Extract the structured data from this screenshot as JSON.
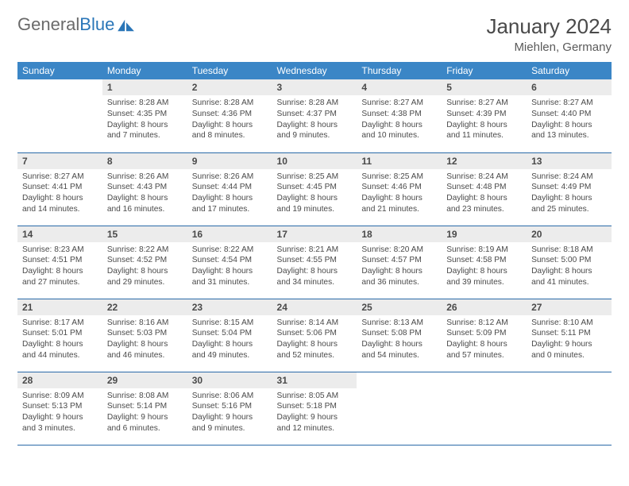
{
  "brand": {
    "name_gray": "General",
    "name_blue": "Blue"
  },
  "title": "January 2024",
  "location": "Miehlen, Germany",
  "colors": {
    "header_bg": "#3b86c6",
    "header_text": "#ffffff",
    "daynum_bg": "#ececec",
    "row_divider": "#2a6aa8",
    "text": "#4a4a4a",
    "brand_gray": "#6a6a6a",
    "brand_blue": "#2a76b8"
  },
  "day_headers": [
    "Sunday",
    "Monday",
    "Tuesday",
    "Wednesday",
    "Thursday",
    "Friday",
    "Saturday"
  ],
  "weeks": [
    [
      null,
      {
        "n": "1",
        "sr": "Sunrise: 8:28 AM",
        "ss": "Sunset: 4:35 PM",
        "d1": "Daylight: 8 hours",
        "d2": "and 7 minutes."
      },
      {
        "n": "2",
        "sr": "Sunrise: 8:28 AM",
        "ss": "Sunset: 4:36 PM",
        "d1": "Daylight: 8 hours",
        "d2": "and 8 minutes."
      },
      {
        "n": "3",
        "sr": "Sunrise: 8:28 AM",
        "ss": "Sunset: 4:37 PM",
        "d1": "Daylight: 8 hours",
        "d2": "and 9 minutes."
      },
      {
        "n": "4",
        "sr": "Sunrise: 8:27 AM",
        "ss": "Sunset: 4:38 PM",
        "d1": "Daylight: 8 hours",
        "d2": "and 10 minutes."
      },
      {
        "n": "5",
        "sr": "Sunrise: 8:27 AM",
        "ss": "Sunset: 4:39 PM",
        "d1": "Daylight: 8 hours",
        "d2": "and 11 minutes."
      },
      {
        "n": "6",
        "sr": "Sunrise: 8:27 AM",
        "ss": "Sunset: 4:40 PM",
        "d1": "Daylight: 8 hours",
        "d2": "and 13 minutes."
      }
    ],
    [
      {
        "n": "7",
        "sr": "Sunrise: 8:27 AM",
        "ss": "Sunset: 4:41 PM",
        "d1": "Daylight: 8 hours",
        "d2": "and 14 minutes."
      },
      {
        "n": "8",
        "sr": "Sunrise: 8:26 AM",
        "ss": "Sunset: 4:43 PM",
        "d1": "Daylight: 8 hours",
        "d2": "and 16 minutes."
      },
      {
        "n": "9",
        "sr": "Sunrise: 8:26 AM",
        "ss": "Sunset: 4:44 PM",
        "d1": "Daylight: 8 hours",
        "d2": "and 17 minutes."
      },
      {
        "n": "10",
        "sr": "Sunrise: 8:25 AM",
        "ss": "Sunset: 4:45 PM",
        "d1": "Daylight: 8 hours",
        "d2": "and 19 minutes."
      },
      {
        "n": "11",
        "sr": "Sunrise: 8:25 AM",
        "ss": "Sunset: 4:46 PM",
        "d1": "Daylight: 8 hours",
        "d2": "and 21 minutes."
      },
      {
        "n": "12",
        "sr": "Sunrise: 8:24 AM",
        "ss": "Sunset: 4:48 PM",
        "d1": "Daylight: 8 hours",
        "d2": "and 23 minutes."
      },
      {
        "n": "13",
        "sr": "Sunrise: 8:24 AM",
        "ss": "Sunset: 4:49 PM",
        "d1": "Daylight: 8 hours",
        "d2": "and 25 minutes."
      }
    ],
    [
      {
        "n": "14",
        "sr": "Sunrise: 8:23 AM",
        "ss": "Sunset: 4:51 PM",
        "d1": "Daylight: 8 hours",
        "d2": "and 27 minutes."
      },
      {
        "n": "15",
        "sr": "Sunrise: 8:22 AM",
        "ss": "Sunset: 4:52 PM",
        "d1": "Daylight: 8 hours",
        "d2": "and 29 minutes."
      },
      {
        "n": "16",
        "sr": "Sunrise: 8:22 AM",
        "ss": "Sunset: 4:54 PM",
        "d1": "Daylight: 8 hours",
        "d2": "and 31 minutes."
      },
      {
        "n": "17",
        "sr": "Sunrise: 8:21 AM",
        "ss": "Sunset: 4:55 PM",
        "d1": "Daylight: 8 hours",
        "d2": "and 34 minutes."
      },
      {
        "n": "18",
        "sr": "Sunrise: 8:20 AM",
        "ss": "Sunset: 4:57 PM",
        "d1": "Daylight: 8 hours",
        "d2": "and 36 minutes."
      },
      {
        "n": "19",
        "sr": "Sunrise: 8:19 AM",
        "ss": "Sunset: 4:58 PM",
        "d1": "Daylight: 8 hours",
        "d2": "and 39 minutes."
      },
      {
        "n": "20",
        "sr": "Sunrise: 8:18 AM",
        "ss": "Sunset: 5:00 PM",
        "d1": "Daylight: 8 hours",
        "d2": "and 41 minutes."
      }
    ],
    [
      {
        "n": "21",
        "sr": "Sunrise: 8:17 AM",
        "ss": "Sunset: 5:01 PM",
        "d1": "Daylight: 8 hours",
        "d2": "and 44 minutes."
      },
      {
        "n": "22",
        "sr": "Sunrise: 8:16 AM",
        "ss": "Sunset: 5:03 PM",
        "d1": "Daylight: 8 hours",
        "d2": "and 46 minutes."
      },
      {
        "n": "23",
        "sr": "Sunrise: 8:15 AM",
        "ss": "Sunset: 5:04 PM",
        "d1": "Daylight: 8 hours",
        "d2": "and 49 minutes."
      },
      {
        "n": "24",
        "sr": "Sunrise: 8:14 AM",
        "ss": "Sunset: 5:06 PM",
        "d1": "Daylight: 8 hours",
        "d2": "and 52 minutes."
      },
      {
        "n": "25",
        "sr": "Sunrise: 8:13 AM",
        "ss": "Sunset: 5:08 PM",
        "d1": "Daylight: 8 hours",
        "d2": "and 54 minutes."
      },
      {
        "n": "26",
        "sr": "Sunrise: 8:12 AM",
        "ss": "Sunset: 5:09 PM",
        "d1": "Daylight: 8 hours",
        "d2": "and 57 minutes."
      },
      {
        "n": "27",
        "sr": "Sunrise: 8:10 AM",
        "ss": "Sunset: 5:11 PM",
        "d1": "Daylight: 9 hours",
        "d2": "and 0 minutes."
      }
    ],
    [
      {
        "n": "28",
        "sr": "Sunrise: 8:09 AM",
        "ss": "Sunset: 5:13 PM",
        "d1": "Daylight: 9 hours",
        "d2": "and 3 minutes."
      },
      {
        "n": "29",
        "sr": "Sunrise: 8:08 AM",
        "ss": "Sunset: 5:14 PM",
        "d1": "Daylight: 9 hours",
        "d2": "and 6 minutes."
      },
      {
        "n": "30",
        "sr": "Sunrise: 8:06 AM",
        "ss": "Sunset: 5:16 PM",
        "d1": "Daylight: 9 hours",
        "d2": "and 9 minutes."
      },
      {
        "n": "31",
        "sr": "Sunrise: 8:05 AM",
        "ss": "Sunset: 5:18 PM",
        "d1": "Daylight: 9 hours",
        "d2": "and 12 minutes."
      },
      null,
      null,
      null
    ]
  ]
}
